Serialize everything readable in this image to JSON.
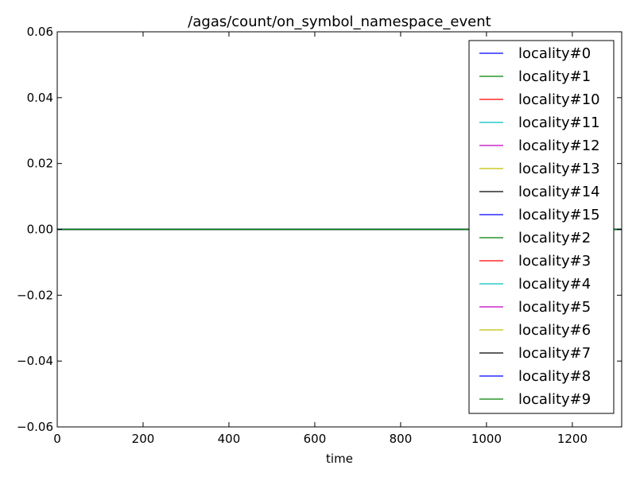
{
  "chart_data": {
    "type": "line",
    "title": "/agas/count/on_symbol_namespace_event",
    "xlabel": "time",
    "ylabel": "",
    "xlim": [
      0,
      1315
    ],
    "ylim": [
      -0.06,
      0.06
    ],
    "xticks": [
      0,
      200,
      400,
      600,
      800,
      1000,
      1200
    ],
    "xtick_labels": [
      "0",
      "200",
      "400",
      "600",
      "800",
      "1000",
      "1200"
    ],
    "yticks": [
      0.06,
      0.04,
      0.02,
      0.0,
      -0.02,
      -0.04,
      -0.06
    ],
    "ytick_labels": [
      "0.06",
      "0.04",
      "0.02",
      "0.00",
      "−0.02",
      "−0.04",
      "−0.06"
    ],
    "grid": false,
    "legend_position": "upper-right",
    "series": [
      {
        "name": "locality#0",
        "color": "#0000ff",
        "x": [
          0,
          1315
        ],
        "y": [
          0,
          0
        ]
      },
      {
        "name": "locality#1",
        "color": "#008000",
        "x": [
          0,
          1315
        ],
        "y": [
          0,
          0
        ]
      },
      {
        "name": "locality#10",
        "color": "#ff0000",
        "x": [
          0,
          1315
        ],
        "y": [
          0,
          0
        ]
      },
      {
        "name": "locality#11",
        "color": "#00bfbf",
        "x": [
          0,
          1315
        ],
        "y": [
          0,
          0
        ]
      },
      {
        "name": "locality#12",
        "color": "#bf00bf",
        "x": [
          0,
          1315
        ],
        "y": [
          0,
          0
        ]
      },
      {
        "name": "locality#13",
        "color": "#bfbf00",
        "x": [
          0,
          1315
        ],
        "y": [
          0,
          0
        ]
      },
      {
        "name": "locality#14",
        "color": "#000000",
        "x": [
          0,
          1315
        ],
        "y": [
          0,
          0
        ]
      },
      {
        "name": "locality#15",
        "color": "#0000ff",
        "x": [
          0,
          1315
        ],
        "y": [
          0,
          0
        ]
      },
      {
        "name": "locality#2",
        "color": "#008000",
        "x": [
          0,
          1315
        ],
        "y": [
          0,
          0
        ]
      },
      {
        "name": "locality#3",
        "color": "#ff0000",
        "x": [
          0,
          1315
        ],
        "y": [
          0,
          0
        ]
      },
      {
        "name": "locality#4",
        "color": "#00bfbf",
        "x": [
          0,
          1315
        ],
        "y": [
          0,
          0
        ]
      },
      {
        "name": "locality#5",
        "color": "#bf00bf",
        "x": [
          0,
          1315
        ],
        "y": [
          0,
          0
        ]
      },
      {
        "name": "locality#6",
        "color": "#bfbf00",
        "x": [
          0,
          1315
        ],
        "y": [
          0,
          0
        ]
      },
      {
        "name": "locality#7",
        "color": "#000000",
        "x": [
          0,
          1315
        ],
        "y": [
          0,
          0
        ]
      },
      {
        "name": "locality#8",
        "color": "#0000ff",
        "x": [
          0,
          1315
        ],
        "y": [
          0,
          0
        ]
      },
      {
        "name": "locality#9",
        "color": "#008000",
        "x": [
          0,
          1315
        ],
        "y": [
          0,
          0
        ]
      }
    ]
  }
}
